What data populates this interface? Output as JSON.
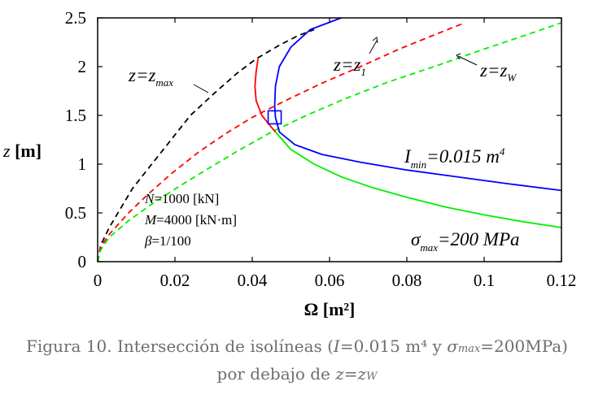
{
  "chart_data": {
    "type": "line",
    "title": "",
    "xlabel": "Ω [m²]",
    "ylabel": "z [m]",
    "xlim": [
      0,
      0.12
    ],
    "ylim": [
      0,
      2.5
    ],
    "xticks": [
      "0",
      "0.02",
      "0.04",
      "0.06",
      "0.08",
      "0.1",
      "0.12"
    ],
    "yticks": [
      "0",
      "0.5",
      "1",
      "1.5",
      "2",
      "2.5"
    ],
    "grid": false,
    "series": [
      {
        "name": "z=zmax",
        "color": "#000000",
        "dash": true,
        "points": [
          [
            0,
            0
          ],
          [
            0.0008,
            0.17
          ],
          [
            0.003,
            0.35
          ],
          [
            0.006,
            0.55
          ],
          [
            0.009,
            0.75
          ],
          [
            0.014,
            1.0
          ],
          [
            0.019,
            1.25
          ],
          [
            0.024,
            1.5
          ],
          [
            0.03,
            1.72
          ],
          [
            0.036,
            1.93
          ],
          [
            0.041,
            2.08
          ],
          [
            0.047,
            2.22
          ],
          [
            0.052,
            2.32
          ],
          [
            0.056,
            2.38
          ]
        ]
      },
      {
        "name": "z=z1",
        "color": "#ff0000",
        "dash": true,
        "points": [
          [
            0,
            0
          ],
          [
            0.0008,
            0.15
          ],
          [
            0.003,
            0.28
          ],
          [
            0.008,
            0.5
          ],
          [
            0.013,
            0.69
          ],
          [
            0.019,
            0.9
          ],
          [
            0.026,
            1.12
          ],
          [
            0.033,
            1.31
          ],
          [
            0.04,
            1.48
          ],
          [
            0.048,
            1.64
          ],
          [
            0.058,
            1.83
          ],
          [
            0.068,
            2.0
          ],
          [
            0.078,
            2.18
          ],
          [
            0.088,
            2.34
          ],
          [
            0.095,
            2.45
          ]
        ]
      },
      {
        "name": "z=zW",
        "color": "#00ee00",
        "dash": true,
        "points": [
          [
            0,
            0
          ],
          [
            0.0008,
            0.12
          ],
          [
            0.003,
            0.25
          ],
          [
            0.008,
            0.42
          ],
          [
            0.014,
            0.59
          ],
          [
            0.021,
            0.77
          ],
          [
            0.028,
            0.94
          ],
          [
            0.036,
            1.13
          ],
          [
            0.045,
            1.33
          ],
          [
            0.054,
            1.5
          ],
          [
            0.064,
            1.67
          ],
          [
            0.075,
            1.84
          ],
          [
            0.087,
            2.0
          ],
          [
            0.1,
            2.18
          ],
          [
            0.112,
            2.34
          ],
          [
            0.12,
            2.45
          ]
        ]
      },
      {
        "name": "red solid curve",
        "color": "#ff0000",
        "dash": false,
        "points": [
          [
            0.0415,
            2.08
          ],
          [
            0.041,
            1.95
          ],
          [
            0.0407,
            1.8
          ],
          [
            0.041,
            1.65
          ],
          [
            0.0425,
            1.5
          ],
          [
            0.0445,
            1.4
          ],
          [
            0.046,
            1.33
          ]
        ]
      },
      {
        "name": "Imin=0.015 m4",
        "color": "#0000ff",
        "dash": false,
        "points": [
          [
            0.063,
            2.5
          ],
          [
            0.055,
            2.38
          ],
          [
            0.05,
            2.2
          ],
          [
            0.047,
            2.0
          ],
          [
            0.046,
            1.8
          ],
          [
            0.0458,
            1.6
          ],
          [
            0.046,
            1.48
          ],
          [
            0.047,
            1.33
          ],
          [
            0.051,
            1.2
          ],
          [
            0.058,
            1.1
          ],
          [
            0.068,
            1.02
          ],
          [
            0.08,
            0.94
          ],
          [
            0.093,
            0.87
          ],
          [
            0.106,
            0.8
          ],
          [
            0.12,
            0.73
          ]
        ]
      },
      {
        "name": "σmax=200 MPa",
        "color": "#00ee00",
        "dash": false,
        "points": [
          [
            0.046,
            1.33
          ],
          [
            0.05,
            1.15
          ],
          [
            0.056,
            1.0
          ],
          [
            0.063,
            0.87
          ],
          [
            0.071,
            0.76
          ],
          [
            0.08,
            0.66
          ],
          [
            0.09,
            0.56
          ],
          [
            0.1,
            0.48
          ],
          [
            0.11,
            0.41
          ],
          [
            0.12,
            0.35
          ]
        ]
      }
    ],
    "marker": {
      "shape": "square",
      "color": "#0000ff",
      "x": 0.0458,
      "y": 1.48
    },
    "annotations": {
      "zmax": {
        "pre": "z=z",
        "sub": "max"
      },
      "z1": {
        "pre": "z=z",
        "sub": "1"
      },
      "zW": {
        "pre": "z=z",
        "sub": "W"
      },
      "imin": {
        "pre": "I",
        "sub": "min",
        "post": "=0.015 m",
        "sup": "4"
      },
      "sigma": {
        "pre": "σ",
        "sub": "max",
        "post": "=200 MPa"
      },
      "params": [
        {
          "sym": "N",
          "rest": "=1000 [kN]"
        },
        {
          "sym": "M",
          "rest": "=4000 [kN·m]"
        },
        {
          "sym": "β",
          "rest": "=1/100"
        }
      ]
    }
  },
  "caption": {
    "p1": "Figura 10. Intersección de isolíneas (",
    "i_sym": "I",
    "p2": "=0.015 m⁴ y ",
    "sigma_sym": "σ",
    "sigma_sub": "max",
    "p3": "=200MPa)",
    "p4": "por debajo de ",
    "z_expr": "z=z",
    "z_sub": "W"
  }
}
